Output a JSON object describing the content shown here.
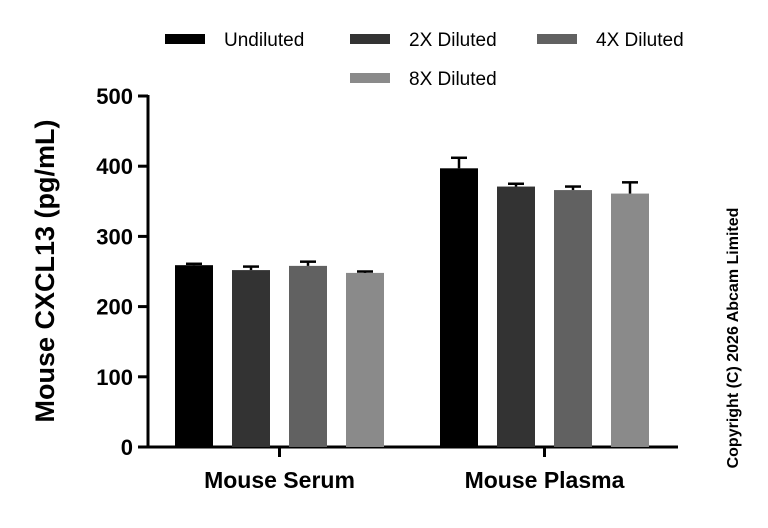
{
  "chart_data": {
    "type": "bar",
    "categories": [
      "Mouse Serum",
      "Mouse Plasma"
    ],
    "series": [
      {
        "name": "Undiluted",
        "color": "#000000",
        "values": [
          259,
          397
        ],
        "errors": [
          2,
          15
        ]
      },
      {
        "name": "2X Diluted",
        "color": "#333333",
        "values": [
          252,
          371
        ],
        "errors": [
          5,
          4
        ]
      },
      {
        "name": "4X Diluted",
        "color": "#616161",
        "values": [
          258,
          366
        ],
        "errors": [
          6,
          5
        ]
      },
      {
        "name": "8X Diluted",
        "color": "#8a8a8a",
        "values": [
          248,
          361
        ],
        "errors": [
          2,
          16
        ]
      }
    ],
    "ylabel": "Mouse CXCL13 (pg/mL)",
    "xlabel": "",
    "ylim": [
      0,
      500
    ],
    "yticks": [
      0,
      100,
      200,
      300,
      400,
      500
    ],
    "grid": false,
    "legend_position": "top"
  },
  "copyright": "Copyright (C) 2026 Abcam Limited"
}
